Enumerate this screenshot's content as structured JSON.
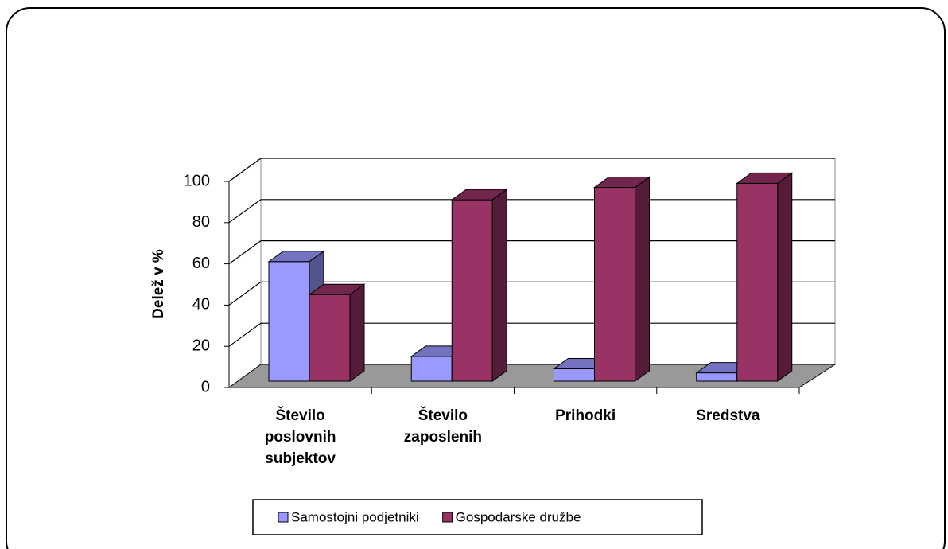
{
  "chart_data": {
    "type": "bar3d",
    "y_label": "Delež v %",
    "categories": [
      "Število poslovnih subjektov",
      "Število zaposlenih",
      "Prihodki",
      "Sredstva"
    ],
    "series": [
      {
        "name": "Samostojni podjetniki",
        "color": "#9999ff",
        "values": [
          58,
          12,
          6,
          4
        ]
      },
      {
        "name": "Gospodarske družbe",
        "color": "#993366",
        "values": [
          42,
          88,
          94,
          96
        ]
      }
    ],
    "ylim": [
      0,
      100
    ],
    "yticks": [
      0,
      20,
      40,
      60,
      80,
      100
    ],
    "grid": true,
    "legend": "bottom"
  }
}
